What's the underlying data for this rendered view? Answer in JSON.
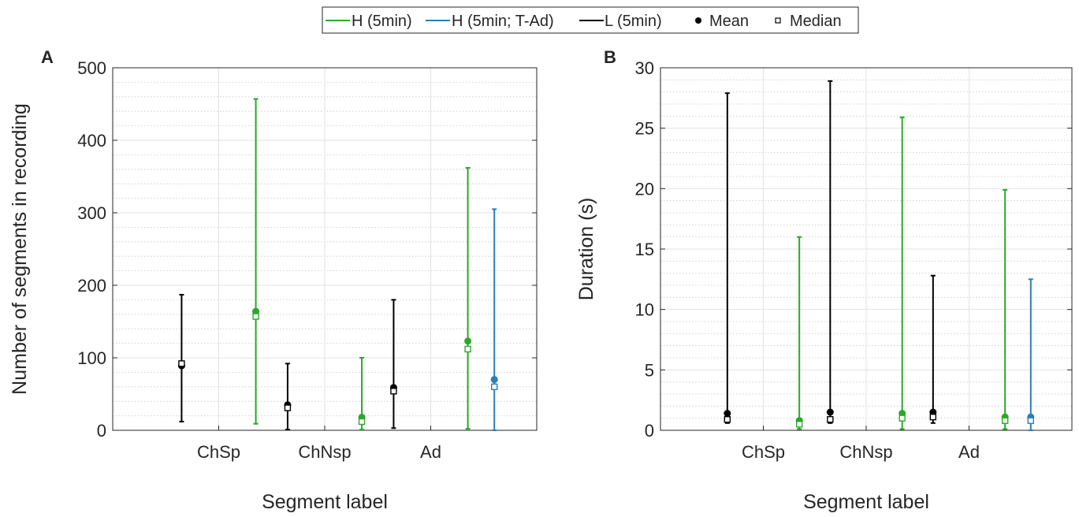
{
  "legend": {
    "items": [
      {
        "kind": "line",
        "label": "H (5min)",
        "color": "#2aa82a"
      },
      {
        "kind": "line",
        "label": "H (5min; T-Ad)",
        "color": "#2a7fb8"
      },
      {
        "kind": "line",
        "label": "L (5min)",
        "color": "#000000"
      },
      {
        "kind": "dot",
        "label": "Mean",
        "color": "#000000"
      },
      {
        "kind": "square",
        "label": "Median",
        "color": "#000000"
      }
    ]
  },
  "chart_data": [
    {
      "panel_letter": "A",
      "type": "errorbar",
      "xlabel": "Segment label",
      "ylabel": "Number of segments in recording",
      "categories": [
        "ChSp",
        "ChNsp",
        "Ad"
      ],
      "ylim": [
        0,
        500
      ],
      "yticks": [
        0,
        100,
        200,
        300,
        400,
        500
      ],
      "minor_grid_step": 20,
      "series": [
        {
          "name": "L (5min)",
          "color": "#000000",
          "offset": -0.35,
          "min": [
            12,
            1,
            3
          ],
          "max": [
            187,
            92,
            180
          ],
          "mean": [
            89,
            35,
            59
          ],
          "median": [
            92,
            31,
            54
          ]
        },
        {
          "name": "H (5min)",
          "color": "#2aa82a",
          "offset": 0.35,
          "min": [
            9,
            1,
            2
          ],
          "max": [
            457,
            100,
            362
          ],
          "mean": [
            164,
            18,
            123
          ],
          "median": [
            157,
            12,
            112
          ]
        },
        {
          "name": "H (5min; T-Ad)",
          "color": "#2a7fb8",
          "offset": 0.6,
          "min": [
            null,
            null,
            0
          ],
          "max": [
            null,
            null,
            305
          ],
          "mean": [
            null,
            null,
            70
          ],
          "median": [
            null,
            null,
            60
          ]
        }
      ]
    },
    {
      "panel_letter": "B",
      "type": "errorbar",
      "xlabel": "Segment label",
      "ylabel": "Duration (s)",
      "categories": [
        "ChSp",
        "ChNsp",
        "Ad"
      ],
      "ylim": [
        0,
        30
      ],
      "yticks": [
        0,
        5,
        10,
        15,
        20,
        25,
        30
      ],
      "minor_grid_step": 1,
      "series": [
        {
          "name": "L (5min)",
          "color": "#000000",
          "offset": -0.35,
          "min": [
            0.6,
            0.6,
            0.6
          ],
          "max": [
            27.9,
            28.9,
            12.8
          ],
          "mean": [
            1.4,
            1.5,
            1.5
          ],
          "median": [
            0.9,
            0.9,
            1.1
          ]
        },
        {
          "name": "H (5min)",
          "color": "#2aa82a",
          "offset": 0.35,
          "min": [
            0.1,
            0.1,
            0.1
          ],
          "max": [
            16.0,
            25.9,
            19.9
          ],
          "mean": [
            0.8,
            1.4,
            1.1
          ],
          "median": [
            0.5,
            1.0,
            0.8
          ]
        },
        {
          "name": "H (5min; T-Ad)",
          "color": "#2a7fb8",
          "offset": 0.6,
          "min": [
            null,
            null,
            0.0
          ],
          "max": [
            null,
            null,
            12.5
          ],
          "mean": [
            null,
            null,
            1.1
          ],
          "median": [
            null,
            null,
            0.8
          ]
        }
      ]
    }
  ]
}
